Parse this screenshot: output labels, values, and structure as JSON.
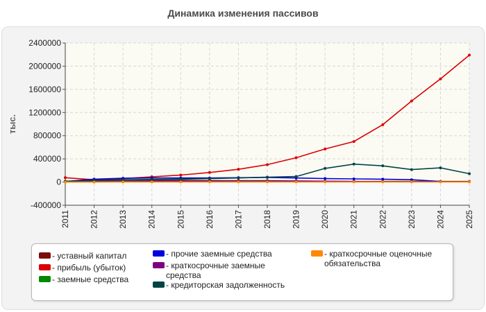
{
  "title": "Динамика изменения пассивов",
  "chart_data": {
    "type": "line",
    "title": "Динамика изменения пассивов",
    "xlabel": "",
    "ylabel": "тыс.",
    "x": [
      "2011",
      "2012",
      "2013",
      "2014",
      "2015",
      "2016",
      "2017",
      "2018",
      "2019",
      "2020",
      "2021",
      "2022",
      "2023",
      "2024",
      "2025"
    ],
    "yticks": [
      "2400000",
      "2000000",
      "1600000",
      "1200000",
      "800000",
      "400000",
      "0",
      "-400000"
    ],
    "ylim": [
      -400000,
      2400000
    ],
    "grid": true,
    "legend_position": "bottom",
    "series": [
      {
        "name": "уставный капитал",
        "color": "#7b0a0a",
        "values": [
          10000,
          10000,
          10000,
          10000,
          10000,
          10000,
          10000,
          10000,
          10000,
          10000,
          10000,
          10000,
          10000,
          10000,
          10000
        ]
      },
      {
        "name": "прибыль (убыток)",
        "color": "#dd0000",
        "values": [
          75000,
          40000,
          60000,
          90000,
          120000,
          165000,
          220000,
          300000,
          420000,
          570000,
          700000,
          990000,
          1400000,
          1780000,
          2190000
        ]
      },
      {
        "name": "заемные средства",
        "color": "#008800",
        "values": [
          15000,
          20000,
          25000,
          30000,
          30000,
          25000,
          20000,
          20000,
          15000,
          10000,
          5000,
          5000,
          5000,
          5000,
          5000
        ]
      },
      {
        "name": "прочие заемные средства",
        "color": "#0000dd",
        "values": [
          10000,
          50000,
          65000,
          70000,
          70000,
          70000,
          75000,
          80000,
          70000,
          60000,
          55000,
          50000,
          40000,
          10000,
          null
        ]
      },
      {
        "name": "краткосрочные заемные средства",
        "color": "#800080",
        "values": [
          5000,
          10000,
          15000,
          20000,
          25000,
          25000,
          25000,
          25000,
          20000,
          15000,
          10000,
          5000,
          5000,
          5000,
          5000
        ]
      },
      {
        "name": "кредиторская задолженность",
        "color": "#004444",
        "values": [
          10000,
          30000,
          40000,
          45000,
          50000,
          60000,
          70000,
          85000,
          95000,
          235000,
          310000,
          280000,
          215000,
          245000,
          145000
        ]
      },
      {
        "name": "краткосрочные оценочные обязательства",
        "color": "#ff8800",
        "values": [
          0,
          0,
          2000,
          2000,
          2000,
          2000,
          2000,
          2000,
          2000,
          2000,
          2000,
          2000,
          2000,
          2000,
          2000
        ]
      }
    ]
  }
}
